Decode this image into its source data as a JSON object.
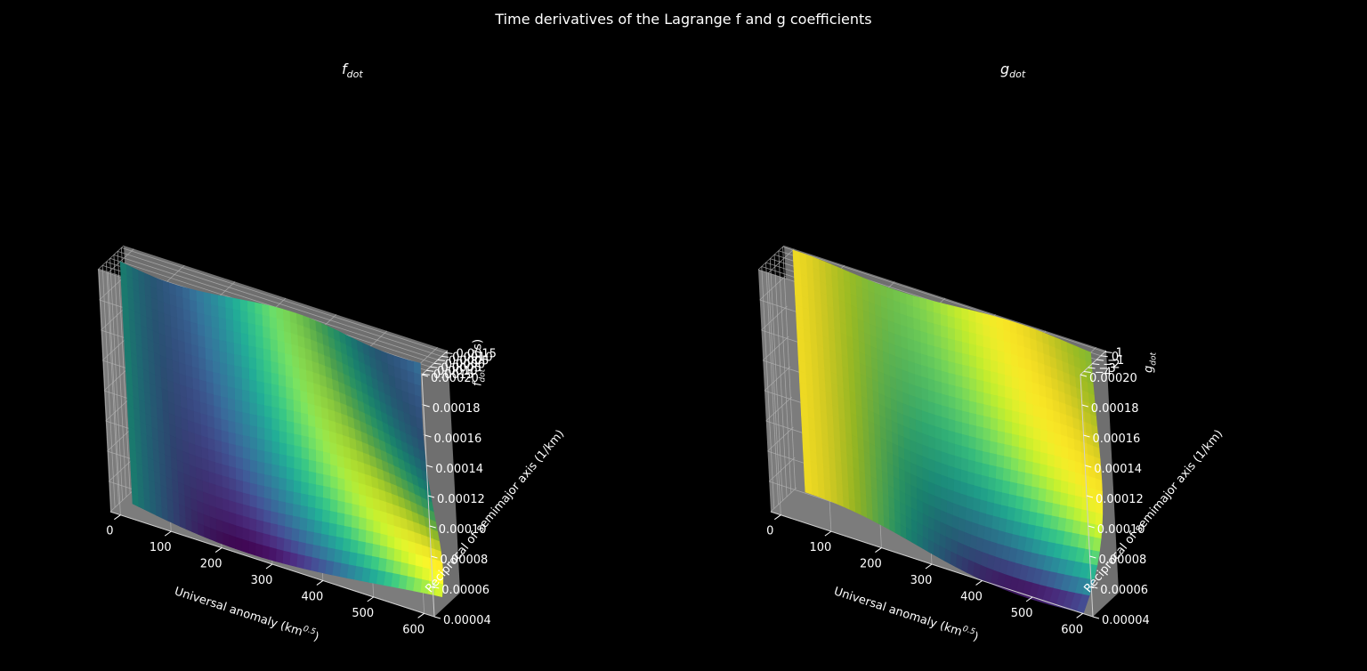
{
  "title": "Time derivatives of the Lagrange f and g coefficients",
  "chart_data": [
    {
      "type": "surface",
      "title_main": "f",
      "title_sub": "dot",
      "xlabel": "Universal anomaly (km",
      "xlabel_sup": "0.5",
      "xlabel_end": ")",
      "ylabel": "Reciprocal of semimajor axis (1/km)",
      "zlabel_main": "f",
      "zlabel_sub": "dot",
      "zlabel_end": " (1/s)",
      "colormap": "viridis",
      "xlim": [
        -20,
        620
      ],
      "ylim": [
        4e-05,
        0.0002
      ],
      "zlim": [
        -0.0016,
        0.0018
      ],
      "x_ticks": [
        "0",
        "100",
        "200",
        "300",
        "400",
        "500",
        "600"
      ],
      "y_ticks": [
        "0.00004",
        "0.00006",
        "0.00008",
        "0.00010",
        "0.00012",
        "0.00014",
        "0.00016",
        "0.00018",
        "0.00020"
      ],
      "z_ticks": [
        "0.0015",
        "0.0010",
        "0.0005",
        "0.0000",
        "0.0005",
        "0.0010",
        "0.0015"
      ]
    },
    {
      "type": "surface",
      "title_main": "g",
      "title_sub": "dot",
      "xlabel": "Universal anomaly (km",
      "xlabel_sup": "0.5",
      "xlabel_end": ")",
      "ylabel": "Reciprocal of semimajor axis (1/km)",
      "zlabel_main": "g",
      "zlabel_sub": "dot",
      "zlabel_end": "",
      "colormap": "viridis",
      "xlim": [
        -20,
        620
      ],
      "ylim": [
        4e-05,
        0.0002
      ],
      "zlim": [
        -4.8,
        1.3
      ],
      "x_ticks": [
        "0",
        "100",
        "200",
        "300",
        "400",
        "500",
        "600"
      ],
      "y_ticks": [
        "0.00004",
        "0.00006",
        "0.00008",
        "0.00010",
        "0.00012",
        "0.00014",
        "0.00016",
        "0.00018",
        "0.00020"
      ],
      "z_ticks": [
        "1",
        "0",
        "−1",
        "−2",
        "−3",
        "−4"
      ]
    }
  ],
  "colors": {
    "background": "#000000",
    "pane_floor": "#7c7c7c",
    "pane_left": "#757575",
    "pane_back": "#6f6f6f",
    "grid": "#b0b0b0",
    "text": "#ffffff"
  }
}
